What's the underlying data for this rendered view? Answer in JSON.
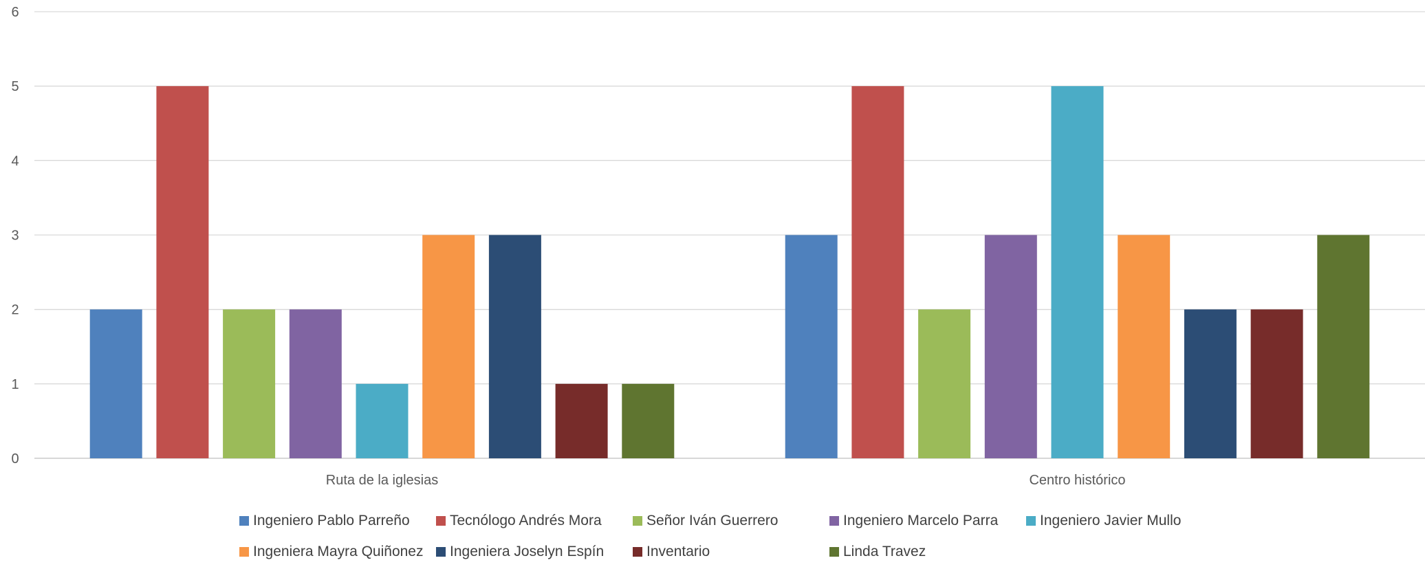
{
  "chart_data": {
    "type": "bar",
    "categories": [
      "Ruta de la iglesias",
      "Centro histórico"
    ],
    "series": [
      {
        "name": "Ingeniero Pablo Parreño",
        "color": "#4F81BD",
        "values": [
          2,
          3
        ]
      },
      {
        "name": "Tecnólogo Andrés Mora",
        "color": "#C0504D",
        "values": [
          5,
          5
        ]
      },
      {
        "name": "Señor Iván Guerrero",
        "color": "#9BBB59",
        "values": [
          2,
          2
        ]
      },
      {
        "name": "Ingeniero Marcelo Parra",
        "color": "#8064A2",
        "values": [
          2,
          3
        ]
      },
      {
        "name": "Ingeniero Javier Mullo",
        "color": "#4BACC6",
        "values": [
          1,
          5
        ]
      },
      {
        "name": "Ingeniera Mayra Quiñonez",
        "color": "#F79646",
        "values": [
          3,
          3
        ]
      },
      {
        "name": "Ingeniera Joselyn Espín",
        "color": "#2C4D75",
        "values": [
          3,
          2
        ]
      },
      {
        "name": "Inventario",
        "color": "#772C2A",
        "values": [
          1,
          2
        ]
      },
      {
        "name": "Linda Travez",
        "color": "#5F7530",
        "values": [
          1,
          3
        ]
      }
    ],
    "yticks": [
      "0",
      "1",
      "2",
      "3",
      "4",
      "5",
      "6"
    ],
    "ylim": [
      0,
      6
    ],
    "grid": true,
    "legend_position": "bottom"
  }
}
